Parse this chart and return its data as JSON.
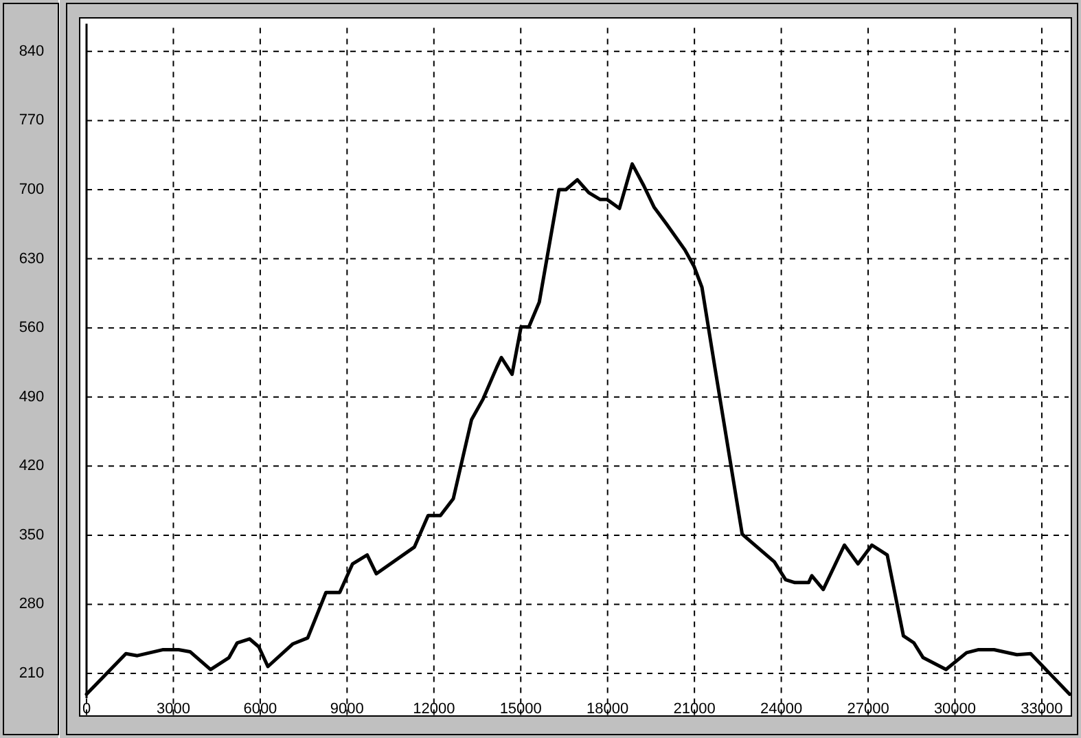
{
  "chart_data": {
    "type": "line",
    "x": [
      0,
      1360,
      1755,
      2625,
      3180,
      3575,
      4285,
      4920,
      5205,
      5630,
      5950,
      6265,
      7130,
      7640,
      8270,
      8745,
      9190,
      9695,
      10010,
      11325,
      11800,
      12225,
      12670,
      13300,
      13700,
      14170,
      14330,
      14700,
      15010,
      15280,
      15640,
      16320,
      16560,
      16955,
      17350,
      17745,
      17985,
      18410,
      18850,
      19250,
      19610,
      20040,
      20670,
      20990,
      21260,
      21700,
      22650,
      23125,
      23760,
      24150,
      24470,
      24945,
      25055,
      25450,
      26180,
      26650,
      27130,
      27660,
      28220,
      28580,
      28900,
      29690,
      30400,
      30795,
      31350,
      32140,
      32615,
      33960
    ],
    "series": [
      {
        "color": "#000000",
        "values": [
          189,
          230,
          228,
          234,
          234,
          232,
          214,
          226,
          241,
          245,
          237,
          217,
          240,
          246,
          292,
          292,
          321,
          330,
          311,
          338,
          370,
          370,
          387,
          467,
          488,
          520,
          530,
          513,
          561,
          561,
          586,
          700,
          700,
          710,
          697,
          690,
          690,
          681,
          726,
          704,
          682,
          665,
          639,
          622,
          601,
          521,
          351,
          339,
          323,
          305,
          302,
          302,
          309,
          295,
          340,
          321,
          340,
          330,
          248,
          241,
          226,
          214,
          231,
          234,
          234,
          229,
          230,
          189
        ]
      }
    ],
    "xlim": [
      0,
      33960
    ],
    "ylim": [
      168,
      868
    ],
    "xticks": [
      0,
      3000,
      6000,
      9000,
      12000,
      15000,
      18000,
      21000,
      24000,
      27000,
      30000,
      33000
    ],
    "yticks": [
      210,
      280,
      350,
      420,
      490,
      560,
      630,
      700,
      770,
      840
    ],
    "grid": true,
    "line_style": "solid",
    "marker": "none"
  }
}
